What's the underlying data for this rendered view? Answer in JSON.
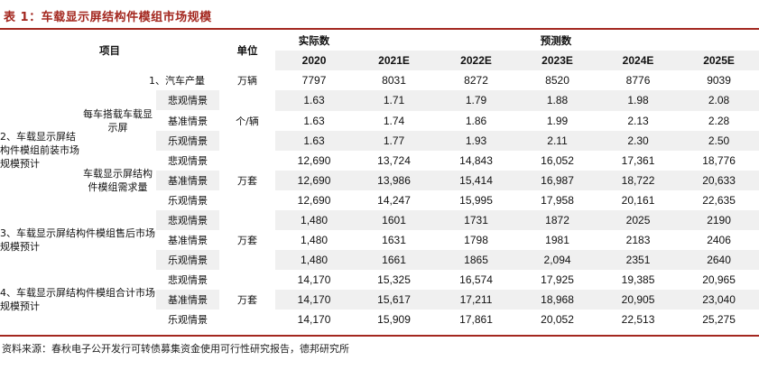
{
  "title": "表 1：车载显示屏结构件模组市场规模",
  "source": "资料来源：春秋电子公开发行可转债募集资金使用可行性研究报告，德邦研究所",
  "header": {
    "item": "项目",
    "unit": "单位",
    "actual": "实际数",
    "forecast": "预测数",
    "years": [
      "2020",
      "2021E",
      "2022E",
      "2023E",
      "2024E",
      "2025E"
    ]
  },
  "sections": {
    "car": {
      "label": "1、汽车产量",
      "unit": "万辆",
      "values": [
        "7797",
        "8031",
        "8272",
        "8520",
        "8776",
        "9039"
      ]
    },
    "s2": {
      "label": "2、车载显示屏结构件模组前装市场规模预计",
      "per_car": {
        "label": "每车搭载车载显示屏",
        "unit": "个/辆",
        "rows": [
          {
            "scenario": "悲观情景",
            "values": [
              "1.63",
              "1.71",
              "1.79",
              "1.88",
              "1.98",
              "2.08"
            ]
          },
          {
            "scenario": "基准情景",
            "values": [
              "1.63",
              "1.74",
              "1.86",
              "1.99",
              "2.13",
              "2.28"
            ]
          },
          {
            "scenario": "乐观情景",
            "values": [
              "1.63",
              "1.77",
              "1.93",
              "2.11",
              "2.30",
              "2.50"
            ]
          }
        ]
      },
      "demand": {
        "label": "车载显示屏结构件模组需求量",
        "unit": "万套",
        "rows": [
          {
            "scenario": "悲观情景",
            "values": [
              "12,690",
              "13,724",
              "14,843",
              "16,052",
              "17,361",
              "18,776"
            ]
          },
          {
            "scenario": "基准情景",
            "values": [
              "12,690",
              "13,986",
              "15,414",
              "16,987",
              "18,722",
              "20,633"
            ]
          },
          {
            "scenario": "乐观情景",
            "values": [
              "12,690",
              "14,247",
              "15,995",
              "17,958",
              "20,161",
              "22,635"
            ]
          }
        ]
      }
    },
    "s3": {
      "label": "3、车载显示屏结构件模组售后市场规模预计",
      "unit": "万套",
      "rows": [
        {
          "scenario": "悲观情景",
          "values": [
            "1,480",
            "1601",
            "1731",
            "1872",
            "2025",
            "2190"
          ]
        },
        {
          "scenario": "基准情景",
          "values": [
            "1,480",
            "1631",
            "1798",
            "1981",
            "2183",
            "2406"
          ]
        },
        {
          "scenario": "乐观情景",
          "values": [
            "1,480",
            "1661",
            "1865",
            "2,094",
            "2351",
            "2640"
          ]
        }
      ]
    },
    "s4": {
      "label": "4、车载显示屏结构件模组合计市场规模预计",
      "unit": "万套",
      "rows": [
        {
          "scenario": "悲观情景",
          "values": [
            "14,170",
            "15,325",
            "16,574",
            "17,925",
            "19,385",
            "20,965"
          ]
        },
        {
          "scenario": "基准情景",
          "values": [
            "14,170",
            "15,617",
            "17,211",
            "18,968",
            "20,905",
            "23,040"
          ]
        },
        {
          "scenario": "乐观情景",
          "values": [
            "14,170",
            "15,909",
            "17,861",
            "20,052",
            "22,513",
            "25,275"
          ]
        }
      ]
    }
  },
  "colors": {
    "accent": "#a3271f",
    "shade": "#f0f0f0"
  }
}
